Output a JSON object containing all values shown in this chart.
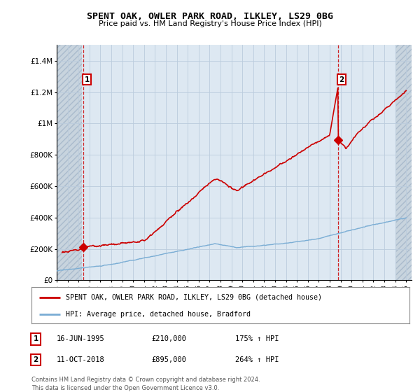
{
  "title1": "SPENT OAK, OWLER PARK ROAD, ILKLEY, LS29 0BG",
  "title2": "Price paid vs. HM Land Registry's House Price Index (HPI)",
  "legend_line1": "SPENT OAK, OWLER PARK ROAD, ILKLEY, LS29 0BG (detached house)",
  "legend_line2": "HPI: Average price, detached house, Bradford",
  "sale1_label": "1",
  "sale1_date": "16-JUN-1995",
  "sale1_price": "£210,000",
  "sale1_hpi": "175% ↑ HPI",
  "sale2_label": "2",
  "sale2_date": "11-OCT-2018",
  "sale2_price": "£895,000",
  "sale2_hpi": "264% ↑ HPI",
  "footer": "Contains HM Land Registry data © Crown copyright and database right 2024.\nThis data is licensed under the Open Government Licence v3.0.",
  "sale_color": "#cc0000",
  "hpi_color": "#7aadd4",
  "sale1_year": 1995.46,
  "sale1_value": 210000,
  "sale2_year": 2018.78,
  "sale2_value": 895000,
  "ylim": [
    0,
    1500000
  ],
  "yticks": [
    0,
    200000,
    400000,
    600000,
    800000,
    1000000,
    1200000,
    1400000
  ],
  "ylabels": [
    "£0",
    "£200K",
    "£400K",
    "£600K",
    "£800K",
    "£1M",
    "£1.2M",
    "£1.4M"
  ],
  "xlim_left": 1993.0,
  "xlim_right": 2025.5,
  "hatch_left_end": 1995.3,
  "hatch_right_start": 2024.0,
  "grid_color": "#bbccdd",
  "bg_color": "#dde8f2",
  "hatch_bg_color": "#c8d4de"
}
